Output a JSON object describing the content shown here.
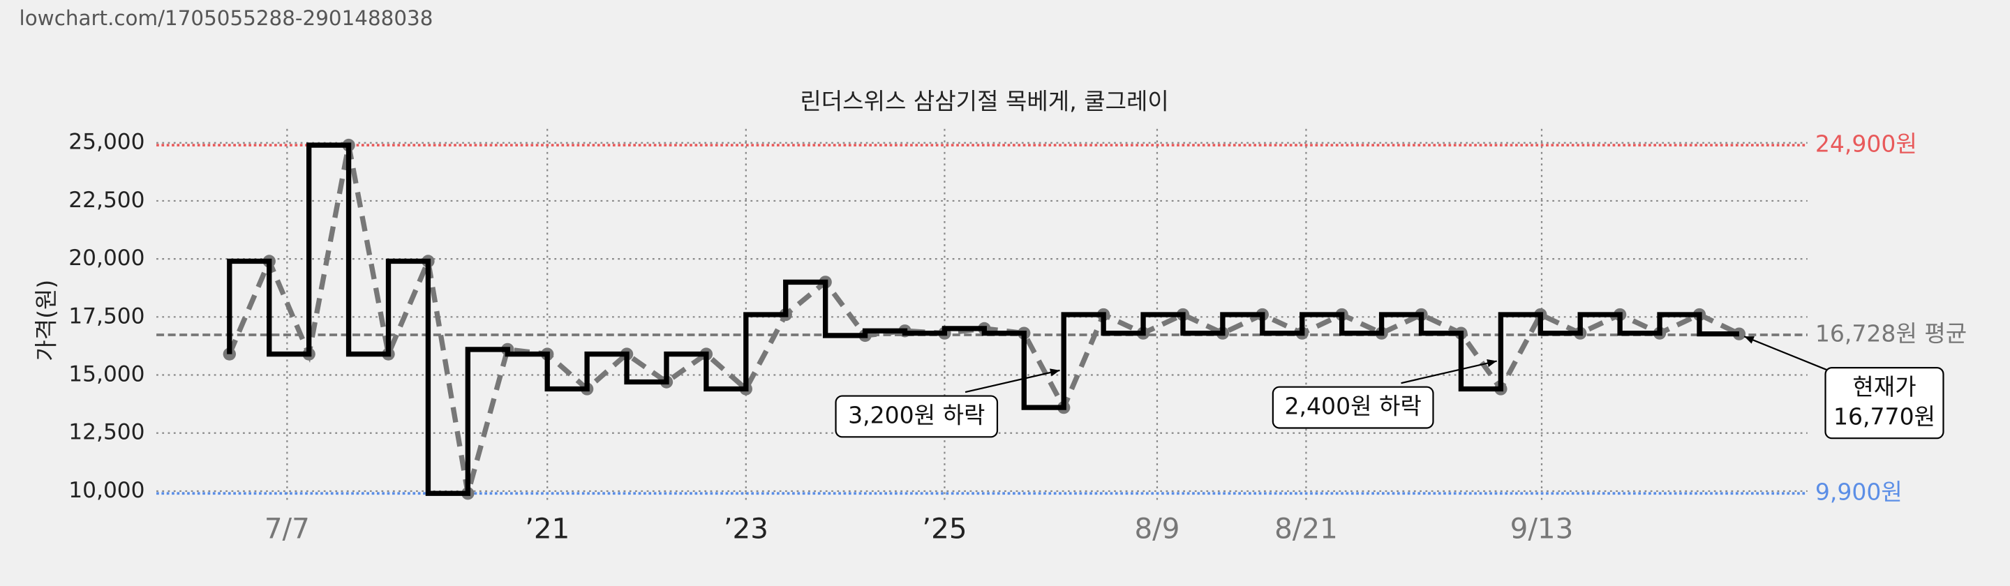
{
  "url": "lowchart.com/1705055288-2901488038",
  "chart_data": {
    "type": "price-step",
    "title": "린더스위스 삼삼기절 목베게, 쿨그레이",
    "ylabel": "가격(원)",
    "series": [
      {
        "name": "가격",
        "color": "#000000",
        "values": [
          15900,
          19900,
          15900,
          24900,
          15900,
          19900,
          9900,
          16100,
          15900,
          14400,
          15900,
          14700,
          15900,
          14400,
          17600,
          19000,
          16700,
          16900,
          16800,
          17000,
          16800,
          13600,
          17600,
          16800,
          17600,
          16800,
          17600,
          16800,
          17600,
          16800,
          17600,
          16800,
          14400,
          17600,
          16800,
          17600,
          16800,
          17600,
          16770
        ]
      }
    ],
    "xlim": [
      -1.84,
      39.72
    ],
    "xticks": [
      {
        "value": 1.45,
        "label": "7/7"
      },
      {
        "value": 8,
        "label": "’21"
      },
      {
        "value": 13,
        "label": "’23"
      },
      {
        "value": 18,
        "label": "’25"
      },
      {
        "value": 23.35,
        "label": "8/9"
      },
      {
        "value": 27.1,
        "label": "8/21"
      },
      {
        "value": 33.03,
        "label": "9/13"
      }
    ],
    "ylim": [
      9500,
      25600
    ],
    "yticks": [
      {
        "value": 10000,
        "label": "10,000"
      },
      {
        "value": 12500,
        "label": "12,500"
      },
      {
        "value": 15000,
        "label": "15,000"
      },
      {
        "value": 17500,
        "label": "17,500"
      },
      {
        "value": 20000,
        "label": "20,000"
      },
      {
        "value": 22500,
        "label": "22,500"
      },
      {
        "value": 25000,
        "label": "25,000"
      }
    ],
    "grid": true,
    "reference_lines": [
      {
        "value": 24900,
        "label": "24,900원",
        "color": "#e8595a"
      },
      {
        "value": 16728,
        "label": "16,728원 평균",
        "color": "#777777"
      },
      {
        "value": 9900,
        "label": "9,900원",
        "color": "#5b8ee6"
      }
    ],
    "annotations": [
      {
        "text": "3,200원 하락",
        "point": 20
      },
      {
        "text": "2,400원 하락",
        "point": 31
      }
    ],
    "current": {
      "lines": [
        "현재가",
        "16,770원"
      ],
      "point": 38
    }
  }
}
